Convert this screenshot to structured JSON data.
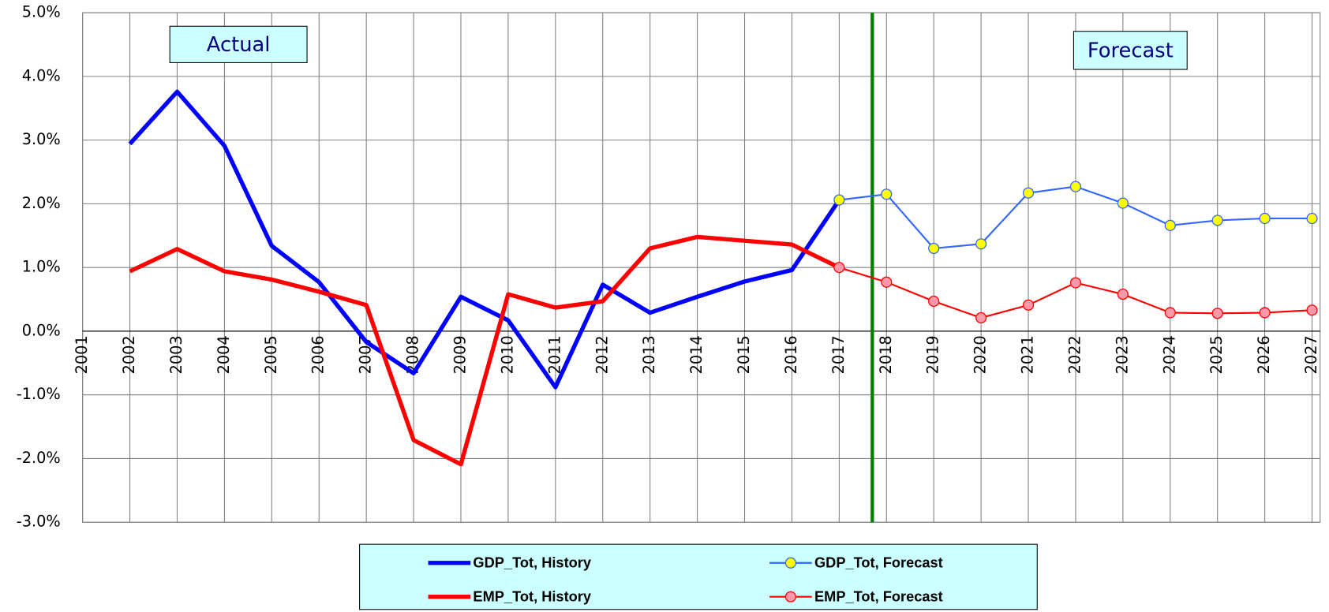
{
  "chart_data": {
    "type": "line",
    "x": [
      2001,
      2002,
      2003,
      2004,
      2005,
      2006,
      2007,
      2008,
      2009,
      2010,
      2011,
      2012,
      2013,
      2014,
      2015,
      2016,
      2017,
      2018,
      2019,
      2020,
      2021,
      2022,
      2023,
      2024,
      2025,
      2026,
      2027
    ],
    "xlim": [
      2001,
      2027.17
    ],
    "ylim": [
      -3,
      5
    ],
    "yticks": [
      {
        "value": -3,
        "label": "-3.0%"
      },
      {
        "value": -2,
        "label": "-2.0%"
      },
      {
        "value": -1,
        "label": "-1.0%"
      },
      {
        "value": 0,
        "label": "0.0%"
      },
      {
        "value": 1,
        "label": "1.0%"
      },
      {
        "value": 2,
        "label": "2.0%"
      },
      {
        "value": 3,
        "label": "3.0%"
      },
      {
        "value": 4,
        "label": "4.0%"
      },
      {
        "value": 5,
        "label": "5.0%"
      }
    ],
    "grid": true,
    "divider_x": 2017.7,
    "divider_color": "#008000",
    "annotations": [
      "Actual",
      "Forecast"
    ],
    "series": [
      {
        "name": "GDP_Tot, History",
        "color": "#0000ff",
        "width": 5,
        "values": [
          null,
          2.94,
          3.76,
          2.91,
          1.34,
          0.77,
          -0.17,
          -0.66,
          0.54,
          0.17,
          -0.88,
          0.73,
          0.29,
          0.54,
          0.78,
          0.96,
          2.06,
          null,
          null,
          null,
          null,
          null,
          null,
          null,
          null,
          null,
          null
        ]
      },
      {
        "name": "GDP_Tot, Forecast",
        "color": "#3366ff",
        "width": 2,
        "marker_color": "#ffff00",
        "values": [
          null,
          null,
          null,
          null,
          null,
          null,
          null,
          null,
          null,
          null,
          null,
          null,
          null,
          null,
          null,
          null,
          2.06,
          2.15,
          1.3,
          1.37,
          2.17,
          2.27,
          2.01,
          1.66,
          1.74,
          1.77,
          1.77
        ]
      },
      {
        "name": "EMP_Tot, History",
        "color": "#ff0000",
        "width": 5,
        "values": [
          null,
          0.94,
          1.29,
          0.94,
          0.81,
          0.62,
          0.41,
          -1.71,
          -2.09,
          0.58,
          0.37,
          0.47,
          1.3,
          1.48,
          1.42,
          1.36,
          1.0,
          null,
          null,
          null,
          null,
          null,
          null,
          null,
          null,
          null,
          null
        ]
      },
      {
        "name": "EMP_Tot, Forecast",
        "color": "#ff0000",
        "width": 2,
        "marker_color": "#ff99aa",
        "values": [
          null,
          null,
          null,
          null,
          null,
          null,
          null,
          null,
          null,
          null,
          null,
          null,
          null,
          null,
          null,
          null,
          1.0,
          0.77,
          0.47,
          0.21,
          0.41,
          0.76,
          0.58,
          0.29,
          0.28,
          0.29,
          0.33
        ]
      }
    ]
  }
}
